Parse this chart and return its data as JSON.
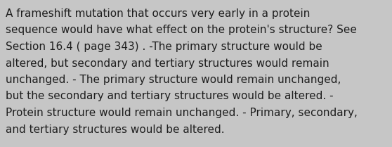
{
  "lines": [
    "A frameshift mutation that occurs very early in a protein",
    "sequence would have what effect on the protein's structure? See",
    "Section 16.4 ( page 343) . -The primary structure would be",
    "altered, but secondary and tertiary structures would remain",
    "unchanged. - The primary structure would remain unchanged,",
    "but the secondary and tertiary structures would be altered. -",
    "Protein structure would remain unchanged. - Primary, secondary,",
    "and tertiary structures would be altered."
  ],
  "background_color": "#c6c6c6",
  "text_color": "#1e1e1e",
  "font_size": 11.0,
  "font_family": "DejaVu Sans"
}
